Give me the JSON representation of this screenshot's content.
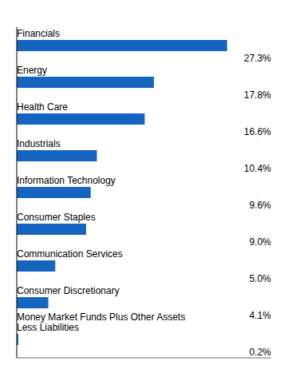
{
  "chart_data": {
    "type": "bar",
    "orientation": "horizontal",
    "categories": [
      "Financials",
      "Energy",
      "Health Care",
      "Industrials",
      "Information Technology",
      "Consumer Staples",
      "Communication Services",
      "Consumer Discretionary",
      "Money Market Funds Plus Other Assets\nLess Liabilities"
    ],
    "values": [
      27.3,
      17.8,
      16.6,
      10.4,
      9.6,
      9.0,
      5.0,
      4.1,
      0.2
    ],
    "value_labels": [
      "27.3%",
      "17.8%",
      "16.6%",
      "10.4%",
      "9.6%",
      "9.0%",
      "5.0%",
      "4.1%",
      "0.2%"
    ],
    "color": "#1565C0",
    "xlim": [
      0,
      33
    ],
    "data_labels": true,
    "tick_labels": false,
    "grid": false
  }
}
